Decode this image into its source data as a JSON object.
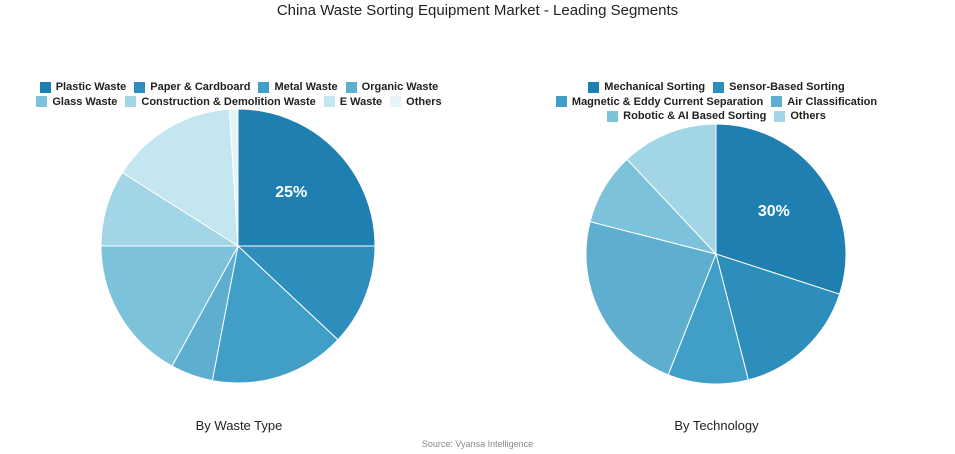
{
  "title": "China Waste Sorting Equipment Market - Leading Segments",
  "source": "Source: Vyansa Intelligence",
  "chart_data": [
    {
      "type": "pie",
      "xlabel": "By Waste Type",
      "legend_placement": "top",
      "legend_rows": [
        [
          0,
          1,
          2,
          3
        ],
        [
          4,
          5,
          6,
          7
        ]
      ],
      "slices": [
        {
          "name": "Plastic Waste",
          "value": 25,
          "color": "#1f7fb0",
          "label": "25%"
        },
        {
          "name": "Paper & Cardboard",
          "value": 12,
          "color": "#2e8ebb",
          "label": ""
        },
        {
          "name": "Metal Waste",
          "value": 16,
          "color": "#409ec7",
          "label": ""
        },
        {
          "name": "Organic Waste",
          "value": 5,
          "color": "#5eafcf",
          "label": ""
        },
        {
          "name": "Glass Waste",
          "value": 17,
          "color": "#7cc2da",
          "label": ""
        },
        {
          "name": "Construction & Demolition Waste",
          "value": 9,
          "color": "#a2d5e6",
          "label": ""
        },
        {
          "name": "E Waste",
          "value": 15,
          "color": "#c4e6f0",
          "label": ""
        },
        {
          "name": "Others",
          "value": 1,
          "color": "#e4f4f8",
          "label": ""
        }
      ]
    },
    {
      "type": "pie",
      "xlabel": "By Technology",
      "legend_placement": "top",
      "legend_rows": [
        [
          0,
          1
        ],
        [
          2,
          3
        ],
        [
          4,
          5
        ]
      ],
      "slices": [
        {
          "name": "Mechanical Sorting",
          "value": 30,
          "color": "#1f7fb0",
          "label": "30%"
        },
        {
          "name": "Sensor-Based Sorting",
          "value": 16,
          "color": "#2e8ebb",
          "label": ""
        },
        {
          "name": "Magnetic & Eddy Current Separation",
          "value": 10,
          "color": "#409ec7",
          "label": ""
        },
        {
          "name": "Air Classification",
          "value": 23,
          "color": "#5eafcf",
          "label": ""
        },
        {
          "name": "Robotic & AI Based Sorting",
          "value": 9,
          "color": "#7cc2da",
          "label": ""
        },
        {
          "name": "Others",
          "value": 12,
          "color": "#a2d5e6",
          "label": ""
        }
      ]
    }
  ]
}
